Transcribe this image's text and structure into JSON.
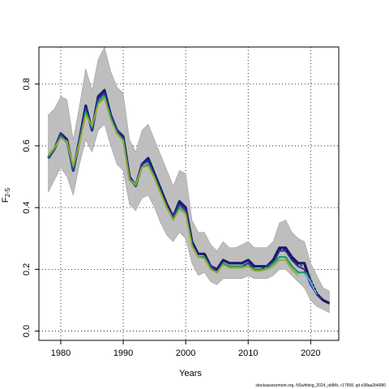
{
  "chart_data": {
    "type": "line",
    "xlabel": "Years",
    "ylabel_main": "F",
    "ylabel_sub": "2-5",
    "xlim": [
      1976.5,
      2024.5
    ],
    "ylim": [
      -0.03,
      0.92
    ],
    "xticks": [
      1980,
      1990,
      2000,
      2010,
      2020
    ],
    "yticks": [
      0.0,
      0.2,
      0.4,
      0.6,
      0.8
    ],
    "xtick_labels": [
      "1980",
      "1990",
      "2000",
      "2010",
      "2020"
    ],
    "ytick_labels": [
      "0.0",
      "0.2",
      "0.4",
      "0.6",
      "0.8"
    ],
    "grid": true,
    "colors": {
      "band": "#bebebe",
      "band_edge": "#a0a0a0",
      "series_dark": "#1c1c6e",
      "series_blue": "#2a3a9c",
      "series_green": "#1a9e5a",
      "series_olive": "#9aaa30",
      "series_light_blue": "#57a8e0",
      "series_black": "#111111"
    },
    "band": {
      "x": [
        1978,
        1979,
        1980,
        1981,
        1982,
        1983,
        1984,
        1985,
        1986,
        1987,
        1988,
        1989,
        1990,
        1991,
        1992,
        1993,
        1994,
        1995,
        1996,
        1997,
        1998,
        1999,
        2000,
        2001,
        2002,
        2003,
        2004,
        2005,
        2006,
        2007,
        2008,
        2009,
        2010,
        2011,
        2012,
        2013,
        2014,
        2015,
        2016,
        2017,
        2018,
        2019,
        2020,
        2021,
        2022,
        2023
      ],
      "upper": [
        0.7,
        0.72,
        0.76,
        0.75,
        0.62,
        0.73,
        0.85,
        0.78,
        0.88,
        0.92,
        0.84,
        0.79,
        0.77,
        0.62,
        0.58,
        0.65,
        0.67,
        0.62,
        0.57,
        0.52,
        0.47,
        0.52,
        0.51,
        0.36,
        0.32,
        0.32,
        0.28,
        0.26,
        0.29,
        0.27,
        0.27,
        0.28,
        0.29,
        0.27,
        0.27,
        0.27,
        0.29,
        0.35,
        0.36,
        0.32,
        0.3,
        0.29,
        0.22,
        0.18,
        0.14,
        0.13
      ],
      "lower": [
        0.45,
        0.49,
        0.53,
        0.5,
        0.44,
        0.54,
        0.62,
        0.58,
        0.65,
        0.67,
        0.6,
        0.54,
        0.52,
        0.41,
        0.39,
        0.43,
        0.44,
        0.4,
        0.35,
        0.31,
        0.29,
        0.32,
        0.3,
        0.22,
        0.18,
        0.19,
        0.16,
        0.15,
        0.17,
        0.17,
        0.17,
        0.17,
        0.18,
        0.17,
        0.17,
        0.17,
        0.18,
        0.2,
        0.2,
        0.18,
        0.16,
        0.14,
        0.1,
        0.08,
        0.07,
        0.06
      ]
    },
    "series": [
      {
        "color_key": "series_dark",
        "x": [
          1978,
          1979,
          1980,
          1981,
          1982,
          1983,
          1984,
          1985,
          1986,
          1987,
          1988,
          1989,
          1990,
          1991,
          1992,
          1993,
          1994,
          1995,
          1996,
          1997,
          1998,
          1999,
          2000,
          2001,
          2002,
          2003,
          2004,
          2005,
          2006,
          2007,
          2008,
          2009,
          2010,
          2011,
          2012,
          2013,
          2014,
          2015,
          2016,
          2017,
          2018,
          2019,
          2020,
          2021,
          2022,
          2023
        ],
        "y": [
          0.56,
          0.59,
          0.64,
          0.62,
          0.52,
          0.62,
          0.73,
          0.65,
          0.76,
          0.78,
          0.7,
          0.65,
          0.63,
          0.5,
          0.47,
          0.54,
          0.56,
          0.51,
          0.46,
          0.41,
          0.37,
          0.42,
          0.4,
          0.29,
          0.25,
          0.25,
          0.21,
          0.2,
          0.23,
          0.22,
          0.22,
          0.22,
          0.23,
          0.21,
          0.21,
          0.21,
          0.23,
          0.27,
          0.27,
          0.24,
          0.22,
          0.22,
          0.16,
          0.12,
          0.1,
          0.09
        ]
      },
      {
        "color_key": "series_blue",
        "x": [
          1978,
          1979,
          1980,
          1981,
          1982,
          1983,
          1984,
          1985,
          1986,
          1987,
          1988,
          1989,
          1990,
          1991,
          1992,
          1993,
          1994,
          1995,
          1996,
          1997,
          1998,
          1999,
          2000,
          2001,
          2002,
          2003,
          2004,
          2005,
          2006,
          2007,
          2008,
          2009,
          2010,
          2011,
          2012,
          2013,
          2014,
          2015,
          2016,
          2017,
          2018,
          2019,
          2020,
          2021,
          2022
        ],
        "y": [
          0.56,
          0.59,
          0.64,
          0.61,
          0.52,
          0.62,
          0.72,
          0.65,
          0.75,
          0.77,
          0.7,
          0.65,
          0.62,
          0.5,
          0.47,
          0.54,
          0.55,
          0.5,
          0.45,
          0.4,
          0.37,
          0.41,
          0.39,
          0.28,
          0.24,
          0.24,
          0.21,
          0.19,
          0.22,
          0.21,
          0.21,
          0.21,
          0.22,
          0.2,
          0.2,
          0.21,
          0.22,
          0.26,
          0.26,
          0.23,
          0.21,
          0.2,
          0.15,
          0.12,
          0.1
        ]
      },
      {
        "color_key": "series_light_blue",
        "x": [
          2014,
          2015,
          2016,
          2017,
          2018,
          2019,
          2020,
          2021
        ],
        "y": [
          0.215,
          0.24,
          0.24,
          0.21,
          0.19,
          0.19,
          0.16,
          0.12
        ]
      },
      {
        "color_key": "series_green",
        "x": [
          1978,
          1979,
          1980,
          1981,
          1982,
          1983,
          1984,
          1985,
          1986,
          1987,
          1988,
          1989,
          1990,
          1991,
          1992,
          1993,
          1994,
          1995,
          1996,
          1997,
          1998,
          1999,
          2000,
          2001,
          2002,
          2003,
          2004,
          2005,
          2006,
          2007,
          2008,
          2009,
          2010,
          2011,
          2012,
          2013,
          2014,
          2015,
          2016,
          2017,
          2018,
          2019,
          2020
        ],
        "y": [
          0.565,
          0.59,
          0.63,
          0.61,
          0.53,
          0.61,
          0.71,
          0.66,
          0.74,
          0.76,
          0.69,
          0.64,
          0.62,
          0.49,
          0.47,
          0.53,
          0.54,
          0.5,
          0.45,
          0.4,
          0.36,
          0.4,
          0.38,
          0.28,
          0.24,
          0.24,
          0.2,
          0.19,
          0.22,
          0.21,
          0.21,
          0.21,
          0.21,
          0.2,
          0.2,
          0.2,
          0.22,
          0.24,
          0.24,
          0.21,
          0.19,
          0.19,
          0.18
        ]
      },
      {
        "color_key": "series_olive",
        "x": [
          1978,
          1979,
          1980,
          1981,
          1982,
          1983,
          1984,
          1985,
          1986,
          1987,
          1988,
          1989,
          1990,
          1991,
          1992,
          1993,
          1994,
          1995,
          1996,
          1997,
          1998,
          1999,
          2000,
          2001,
          2002,
          2003,
          2004,
          2005,
          2006,
          2007,
          2008,
          2009,
          2010,
          2011,
          2012,
          2013,
          2014,
          2015,
          2016,
          2017,
          2018
        ],
        "y": [
          0.57,
          0.595,
          0.625,
          0.615,
          0.535,
          0.61,
          0.7,
          0.665,
          0.735,
          0.755,
          0.685,
          0.64,
          0.615,
          0.49,
          0.475,
          0.53,
          0.535,
          0.495,
          0.445,
          0.4,
          0.36,
          0.395,
          0.38,
          0.275,
          0.24,
          0.235,
          0.2,
          0.19,
          0.215,
          0.205,
          0.205,
          0.205,
          0.21,
          0.195,
          0.195,
          0.2,
          0.21,
          0.23,
          0.23,
          0.2,
          0.18
        ]
      },
      {
        "color_key": "series_black",
        "dashed": true,
        "x": [
          2014,
          2015,
          2016,
          2017,
          2018,
          2019,
          2020,
          2021,
          2022,
          2023
        ],
        "y": [
          0.23,
          0.265,
          0.265,
          0.235,
          0.215,
          0.21,
          0.17,
          0.125,
          0.1,
          0.09
        ]
      }
    ]
  },
  "footer_text": "stockassessment.org, NSwhiting_2024_oldMs, r17958, git e38aa2b4980"
}
